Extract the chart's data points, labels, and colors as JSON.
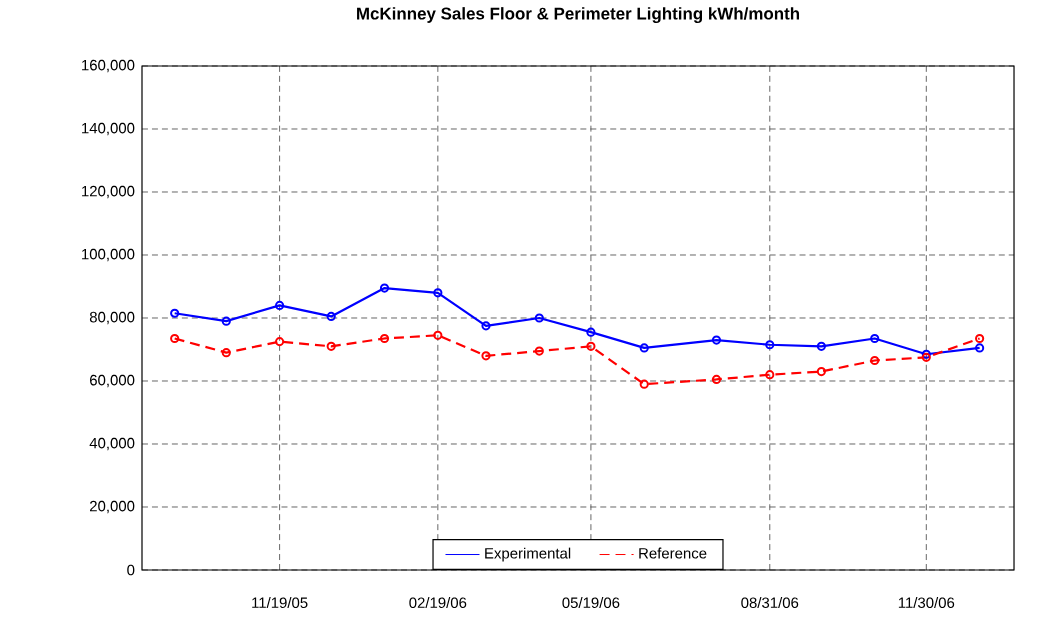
{
  "chart_data": {
    "type": "line",
    "title": "McKinney Sales Floor & Perimeter Lighting kWh/month",
    "x": [
      "2005-09-19",
      "2005-10-19",
      "2005-11-19",
      "2005-12-19",
      "2006-01-19",
      "2006-02-19",
      "2006-03-19",
      "2006-04-19",
      "2006-05-19",
      "2006-06-19",
      "2006-07-31",
      "2006-08-31",
      "2006-09-30",
      "2006-10-31",
      "2006-11-30",
      "2006-12-31"
    ],
    "series": [
      {
        "name": "Experimental",
        "color": "#0000ff",
        "line_style": "solid",
        "values": [
          81500,
          79000,
          84000,
          80500,
          89500,
          88000,
          77500,
          80000,
          75500,
          70500,
          73000,
          71500,
          71000,
          73500,
          68500,
          70500
        ]
      },
      {
        "name": "Reference",
        "color": "#ff0000",
        "line_style": "dashed",
        "values": [
          73500,
          69000,
          72500,
          71000,
          73500,
          74500,
          68000,
          69500,
          71000,
          59000,
          60500,
          62000,
          63000,
          66500,
          67500,
          73500
        ]
      }
    ],
    "marker": "circle",
    "grid": true,
    "legend": "bottom",
    "xlim": [
      "2005-08-31",
      "2007-01-20"
    ],
    "xticks": [
      {
        "value": "2005-11-19",
        "label": "11/19/05"
      },
      {
        "value": "2006-02-19",
        "label": "02/19/06"
      },
      {
        "value": "2006-05-19",
        "label": "05/19/06"
      },
      {
        "value": "2006-08-31",
        "label": "08/31/06"
      },
      {
        "value": "2006-11-30",
        "label": "11/30/06"
      }
    ],
    "ylim": [
      0,
      160000
    ],
    "yticks": [
      0,
      {
        "value": 20000,
        "label": "20,000"
      },
      {
        "value": 40000,
        "label": "40,000"
      },
      {
        "value": 60000,
        "label": "60,000"
      },
      {
        "value": 80000,
        "label": "80,000"
      },
      {
        "value": 100000,
        "label": "100,000"
      },
      {
        "value": 120000,
        "label": "120,000"
      },
      {
        "value": 140000,
        "label": "140,000"
      },
      {
        "value": 160000,
        "label": "160,000"
      }
    ]
  }
}
